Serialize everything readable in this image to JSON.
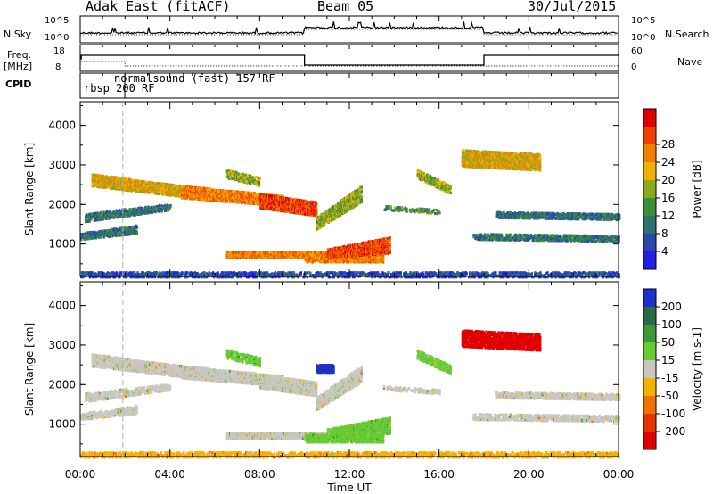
{
  "header": {
    "station": "Adak East (fitACF)",
    "beam": "Beam 05",
    "date": "30/Jul/2015"
  },
  "side_labels": {
    "nsky": "N.Sky",
    "nsearch": "N.Search",
    "freq": "Freq.",
    "freq_unit": "[MHz]",
    "nave": "Nave",
    "cpid": "CPID"
  },
  "top_axes": {
    "noise_ticks": [
      "10^5",
      "10^0"
    ],
    "freq_ticks": [
      "18",
      "8"
    ],
    "nave_ticks": [
      "60",
      "0"
    ]
  },
  "cpid_labels": [
    "rbsp 200 RF",
    "normalsound (fast) 157 RF"
  ],
  "colors": {
    "frame": "#000000",
    "grid_dash": "#b0b0b0"
  },
  "chart_data": [
    {
      "type": "heatmap",
      "title": "",
      "xlabel": "Time UT",
      "ylabel": "Slant Range [km]",
      "x_ticks": [
        "00:00",
        "04:00",
        "08:00",
        "12:00",
        "16:00",
        "20:00",
        "00:00"
      ],
      "y_ticks": [
        "1000",
        "2000",
        "3000",
        "4000"
      ],
      "ylim": [
        180,
        4600
      ],
      "xlim_hours": [
        0,
        24
      ],
      "colorbar": {
        "label": "Power [dB]",
        "ticks": [
          "4",
          "8",
          "12",
          "16",
          "20",
          "24",
          "28"
        ],
        "colors": [
          "#1e22e6",
          "#2a48a8",
          "#2f7070",
          "#3a8f3a",
          "#8aa820",
          "#f0b000",
          "#f08000",
          "#f04000",
          "#e00000"
        ]
      }
    },
    {
      "type": "heatmap",
      "title": "",
      "xlabel": "Time UT",
      "ylabel": "Slant Range [km]",
      "x_ticks": [
        "00:00",
        "04:00",
        "08:00",
        "12:00",
        "16:00",
        "20:00",
        "00:00"
      ],
      "y_ticks": [
        "1000",
        "2000",
        "3000",
        "4000"
      ],
      "ylim": [
        180,
        4600
      ],
      "xlim_hours": [
        0,
        24
      ],
      "colorbar": {
        "label": "Velocity [m s-1]",
        "ticks": [
          "200",
          "100",
          "50",
          "15",
          "-15",
          "-50",
          "-100",
          "-200"
        ],
        "colors": [
          "#1e30c8",
          "#2a6a4a",
          "#3a9a3a",
          "#66cc33",
          "#c8c8c0",
          "#f5b000",
          "#f07000",
          "#e83000",
          "#e00000"
        ]
      }
    }
  ]
}
